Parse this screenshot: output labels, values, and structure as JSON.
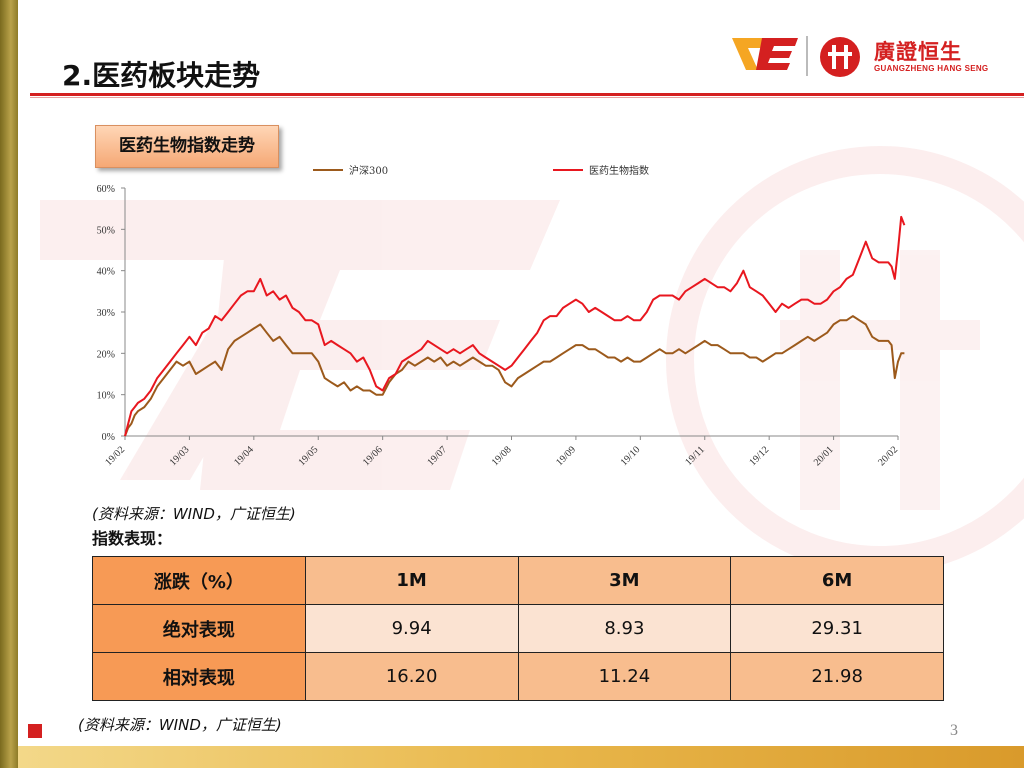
{
  "header": {
    "title": "2.医药板块走势",
    "brand_cn": "廣證恒生",
    "brand_en": "GUANGZHENG HANG SENG"
  },
  "chart_tag": "医药生物指数走势",
  "colors": {
    "accent_red": "#d42020",
    "hs300": "#9c5a1c",
    "pharma": "#e8171f",
    "table_header": "#f79a55",
    "table_light": "#fbe3d2",
    "table_mid": "#f8bd8e"
  },
  "chart_data": {
    "type": "line",
    "title": "",
    "xlabel": "",
    "ylabel": "",
    "ylim": [
      0,
      60
    ],
    "yticks": [
      "0%",
      "10%",
      "20%",
      "30%",
      "40%",
      "50%",
      "60%"
    ],
    "x_tick_labels": [
      "19/02",
      "19/03",
      "19/04",
      "19/05",
      "19/06",
      "19/07",
      "19/08",
      "19/09",
      "19/10",
      "19/11",
      "19/12",
      "20/01",
      "20/02"
    ],
    "legend_position": "top",
    "grid": false,
    "series": [
      {
        "name": "沪深300",
        "color": "#9c5a1c",
        "points": [
          [
            0,
            0
          ],
          [
            0.05,
            2
          ],
          [
            0.1,
            3
          ],
          [
            0.15,
            5
          ],
          [
            0.2,
            6
          ],
          [
            0.3,
            7
          ],
          [
            0.4,
            9
          ],
          [
            0.5,
            12
          ],
          [
            0.6,
            14
          ],
          [
            0.7,
            16
          ],
          [
            0.8,
            18
          ],
          [
            0.9,
            17
          ],
          [
            1.0,
            18
          ],
          [
            1.1,
            15
          ],
          [
            1.2,
            16
          ],
          [
            1.3,
            17
          ],
          [
            1.4,
            18
          ],
          [
            1.5,
            16
          ],
          [
            1.6,
            21
          ],
          [
            1.7,
            23
          ],
          [
            1.8,
            24
          ],
          [
            1.9,
            25
          ],
          [
            2.0,
            26
          ],
          [
            2.1,
            27
          ],
          [
            2.2,
            25
          ],
          [
            2.3,
            23
          ],
          [
            2.4,
            24
          ],
          [
            2.5,
            22
          ],
          [
            2.6,
            20
          ],
          [
            2.7,
            20
          ],
          [
            2.8,
            20
          ],
          [
            2.9,
            20
          ],
          [
            3.0,
            18
          ],
          [
            3.1,
            14
          ],
          [
            3.2,
            13
          ],
          [
            3.3,
            12
          ],
          [
            3.4,
            13
          ],
          [
            3.5,
            11
          ],
          [
            3.6,
            12
          ],
          [
            3.7,
            11
          ],
          [
            3.8,
            11
          ],
          [
            3.9,
            10
          ],
          [
            4.0,
            10
          ],
          [
            4.1,
            13
          ],
          [
            4.2,
            15
          ],
          [
            4.3,
            16
          ],
          [
            4.4,
            18
          ],
          [
            4.5,
            17
          ],
          [
            4.6,
            18
          ],
          [
            4.7,
            19
          ],
          [
            4.8,
            18
          ],
          [
            4.9,
            19
          ],
          [
            5.0,
            17
          ],
          [
            5.1,
            18
          ],
          [
            5.2,
            17
          ],
          [
            5.3,
            18
          ],
          [
            5.4,
            19
          ],
          [
            5.5,
            18
          ],
          [
            5.6,
            17
          ],
          [
            5.7,
            17
          ],
          [
            5.8,
            16
          ],
          [
            5.9,
            13
          ],
          [
            6.0,
            12
          ],
          [
            6.1,
            14
          ],
          [
            6.2,
            15
          ],
          [
            6.3,
            16
          ],
          [
            6.4,
            17
          ],
          [
            6.5,
            18
          ],
          [
            6.6,
            18
          ],
          [
            6.7,
            19
          ],
          [
            6.8,
            20
          ],
          [
            6.9,
            21
          ],
          [
            7.0,
            22
          ],
          [
            7.1,
            22
          ],
          [
            7.2,
            21
          ],
          [
            7.3,
            21
          ],
          [
            7.4,
            20
          ],
          [
            7.5,
            19
          ],
          [
            7.6,
            19
          ],
          [
            7.7,
            18
          ],
          [
            7.8,
            19
          ],
          [
            7.9,
            18
          ],
          [
            8.0,
            18
          ],
          [
            8.1,
            19
          ],
          [
            8.2,
            20
          ],
          [
            8.3,
            21
          ],
          [
            8.4,
            20
          ],
          [
            8.5,
            20
          ],
          [
            8.6,
            21
          ],
          [
            8.7,
            20
          ],
          [
            8.8,
            21
          ],
          [
            8.9,
            22
          ],
          [
            9.0,
            23
          ],
          [
            9.1,
            22
          ],
          [
            9.2,
            22
          ],
          [
            9.3,
            21
          ],
          [
            9.4,
            20
          ],
          [
            9.5,
            20
          ],
          [
            9.6,
            20
          ],
          [
            9.7,
            19
          ],
          [
            9.8,
            19
          ],
          [
            9.9,
            18
          ],
          [
            10.0,
            19
          ],
          [
            10.1,
            20
          ],
          [
            10.2,
            20
          ],
          [
            10.3,
            21
          ],
          [
            10.4,
            22
          ],
          [
            10.5,
            23
          ],
          [
            10.6,
            24
          ],
          [
            10.7,
            23
          ],
          [
            10.8,
            24
          ],
          [
            10.9,
            25
          ],
          [
            11.0,
            27
          ],
          [
            11.1,
            28
          ],
          [
            11.2,
            28
          ],
          [
            11.3,
            29
          ],
          [
            11.4,
            28
          ],
          [
            11.5,
            27
          ],
          [
            11.6,
            24
          ],
          [
            11.7,
            23
          ],
          [
            11.8,
            23
          ],
          [
            11.85,
            23
          ],
          [
            11.9,
            22
          ],
          [
            11.95,
            14
          ],
          [
            12.0,
            18
          ],
          [
            12.05,
            20
          ],
          [
            12.1,
            20
          ]
        ]
      },
      {
        "name": "医药生物指数",
        "color": "#e8171f",
        "points": [
          [
            0,
            0
          ],
          [
            0.05,
            3
          ],
          [
            0.1,
            6
          ],
          [
            0.15,
            7
          ],
          [
            0.2,
            8
          ],
          [
            0.3,
            9
          ],
          [
            0.4,
            11
          ],
          [
            0.5,
            14
          ],
          [
            0.6,
            16
          ],
          [
            0.7,
            18
          ],
          [
            0.8,
            20
          ],
          [
            0.9,
            22
          ],
          [
            1.0,
            24
          ],
          [
            1.1,
            22
          ],
          [
            1.2,
            25
          ],
          [
            1.3,
            26
          ],
          [
            1.4,
            29
          ],
          [
            1.5,
            28
          ],
          [
            1.6,
            30
          ],
          [
            1.7,
            32
          ],
          [
            1.8,
            34
          ],
          [
            1.9,
            35
          ],
          [
            2.0,
            35
          ],
          [
            2.1,
            38
          ],
          [
            2.2,
            34
          ],
          [
            2.3,
            35
          ],
          [
            2.4,
            33
          ],
          [
            2.5,
            34
          ],
          [
            2.6,
            31
          ],
          [
            2.7,
            30
          ],
          [
            2.8,
            28
          ],
          [
            2.9,
            28
          ],
          [
            3.0,
            27
          ],
          [
            3.1,
            22
          ],
          [
            3.2,
            23
          ],
          [
            3.3,
            22
          ],
          [
            3.4,
            21
          ],
          [
            3.5,
            20
          ],
          [
            3.6,
            18
          ],
          [
            3.7,
            19
          ],
          [
            3.8,
            16
          ],
          [
            3.9,
            12
          ],
          [
            4.0,
            11
          ],
          [
            4.1,
            14
          ],
          [
            4.2,
            15
          ],
          [
            4.3,
            18
          ],
          [
            4.4,
            19
          ],
          [
            4.5,
            20
          ],
          [
            4.6,
            21
          ],
          [
            4.7,
            23
          ],
          [
            4.8,
            22
          ],
          [
            4.9,
            21
          ],
          [
            5.0,
            20
          ],
          [
            5.1,
            21
          ],
          [
            5.2,
            20
          ],
          [
            5.3,
            21
          ],
          [
            5.4,
            22
          ],
          [
            5.5,
            20
          ],
          [
            5.6,
            19
          ],
          [
            5.7,
            18
          ],
          [
            5.8,
            17
          ],
          [
            5.9,
            16
          ],
          [
            6.0,
            17
          ],
          [
            6.1,
            19
          ],
          [
            6.2,
            21
          ],
          [
            6.3,
            23
          ],
          [
            6.4,
            25
          ],
          [
            6.5,
            28
          ],
          [
            6.6,
            29
          ],
          [
            6.7,
            29
          ],
          [
            6.8,
            31
          ],
          [
            6.9,
            32
          ],
          [
            7.0,
            33
          ],
          [
            7.1,
            32
          ],
          [
            7.2,
            30
          ],
          [
            7.3,
            31
          ],
          [
            7.4,
            30
          ],
          [
            7.5,
            29
          ],
          [
            7.6,
            28
          ],
          [
            7.7,
            28
          ],
          [
            7.8,
            29
          ],
          [
            7.9,
            28
          ],
          [
            8.0,
            28
          ],
          [
            8.1,
            30
          ],
          [
            8.2,
            33
          ],
          [
            8.3,
            34
          ],
          [
            8.4,
            34
          ],
          [
            8.5,
            34
          ],
          [
            8.6,
            33
          ],
          [
            8.7,
            35
          ],
          [
            8.8,
            36
          ],
          [
            8.9,
            37
          ],
          [
            9.0,
            38
          ],
          [
            9.1,
            37
          ],
          [
            9.2,
            36
          ],
          [
            9.3,
            36
          ],
          [
            9.4,
            35
          ],
          [
            9.5,
            37
          ],
          [
            9.6,
            40
          ],
          [
            9.7,
            36
          ],
          [
            9.8,
            35
          ],
          [
            9.9,
            34
          ],
          [
            10.0,
            32
          ],
          [
            10.1,
            30
          ],
          [
            10.2,
            32
          ],
          [
            10.3,
            31
          ],
          [
            10.4,
            32
          ],
          [
            10.5,
            33
          ],
          [
            10.6,
            33
          ],
          [
            10.7,
            32
          ],
          [
            10.8,
            32
          ],
          [
            10.9,
            33
          ],
          [
            11.0,
            35
          ],
          [
            11.1,
            36
          ],
          [
            11.2,
            38
          ],
          [
            11.3,
            39
          ],
          [
            11.4,
            43
          ],
          [
            11.5,
            47
          ],
          [
            11.6,
            43
          ],
          [
            11.7,
            42
          ],
          [
            11.8,
            42
          ],
          [
            11.85,
            42
          ],
          [
            11.9,
            41
          ],
          [
            11.95,
            38
          ],
          [
            12.0,
            45
          ],
          [
            12.05,
            53
          ],
          [
            12.1,
            51
          ]
        ]
      }
    ]
  },
  "source_note_1": "(资料来源：WIND，广证恒生)",
  "perf_label": "指数表现：",
  "table": {
    "corner": "涨跌（%）",
    "columns": [
      "1M",
      "3M",
      "6M"
    ],
    "rows": [
      {
        "label": "绝对表现",
        "values": [
          "9.94",
          "8.93",
          "29.31"
        ]
      },
      {
        "label": "相对表现",
        "values": [
          "16.20",
          "11.24",
          "21.98"
        ]
      }
    ]
  },
  "source_note_2": "(资料来源：WIND，广证恒生)",
  "page_number": "3"
}
